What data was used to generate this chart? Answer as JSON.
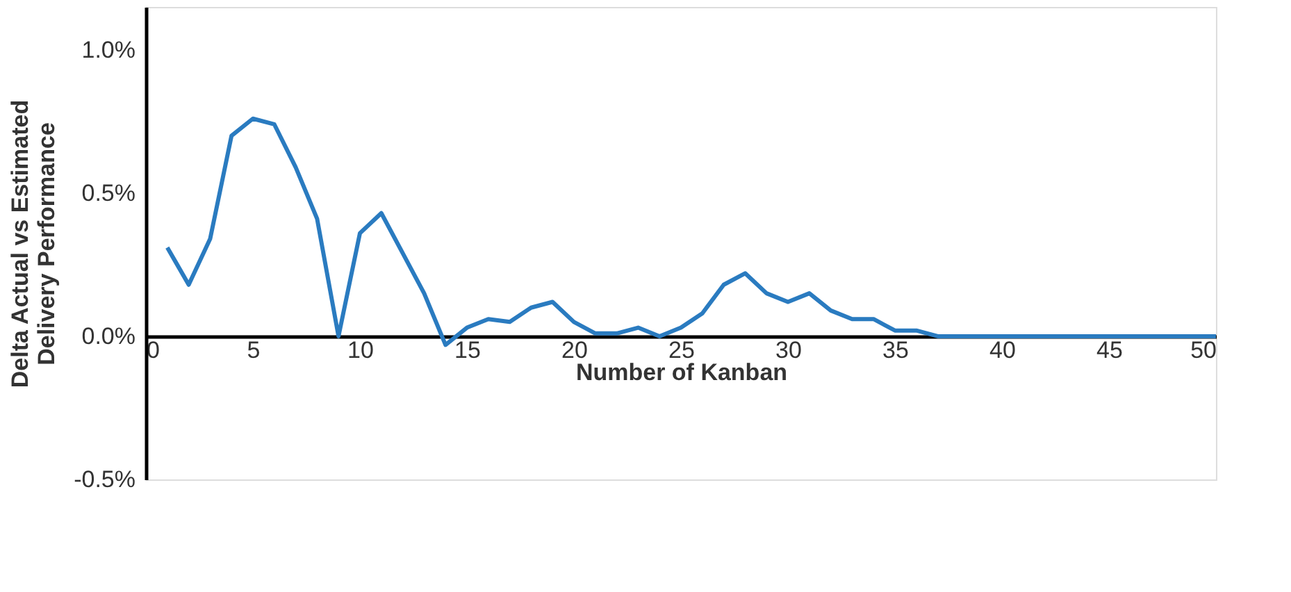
{
  "chart_data": {
    "type": "line",
    "xlabel": "Number of Kanban",
    "ylabel": "Delta Actual vs Estimated\nDelivery Performance",
    "x": [
      1,
      2,
      3,
      4,
      5,
      6,
      7,
      8,
      9,
      10,
      11,
      12,
      13,
      14,
      15,
      16,
      17,
      18,
      19,
      20,
      21,
      22,
      23,
      24,
      25,
      26,
      27,
      28,
      29,
      30,
      31,
      32,
      33,
      34,
      35,
      36,
      37,
      38,
      39,
      40,
      41,
      42,
      43,
      44,
      45,
      46,
      47,
      48,
      49,
      50
    ],
    "series": [
      {
        "color": "#2a7bc0",
        "values": [
          0.31,
          0.18,
          0.34,
          0.7,
          0.76,
          0.74,
          0.59,
          0.41,
          0,
          0.36,
          0.43,
          0.29,
          0.15,
          -0.03,
          0.03,
          0.06,
          0.05,
          0.1,
          0.12,
          0.05,
          0.01,
          0.01,
          0.03,
          0,
          0.03,
          0.08,
          0.18,
          0.22,
          0.15,
          0.12,
          0.15,
          0.09,
          0.06,
          0.06,
          0.02,
          0.02,
          0,
          0,
          0,
          0,
          0,
          0,
          0,
          0,
          0,
          0,
          0,
          0,
          0,
          0
        ]
      }
    ],
    "xlim": [
      0,
      50
    ],
    "xticks": [
      0,
      5,
      10,
      15,
      20,
      25,
      30,
      35,
      40,
      45,
      50
    ],
    "ylim": [
      -0.5,
      1.15
    ],
    "yticks": [
      {
        "value": -0.5,
        "label": "-0.5%"
      },
      {
        "value": 0,
        "label": "0.0%"
      },
      {
        "value": 0.5,
        "label": "0.5%"
      },
      {
        "value": 1.0,
        "label": "1.0%"
      }
    ],
    "grid": false,
    "marker": "none",
    "line_style": "solid"
  }
}
